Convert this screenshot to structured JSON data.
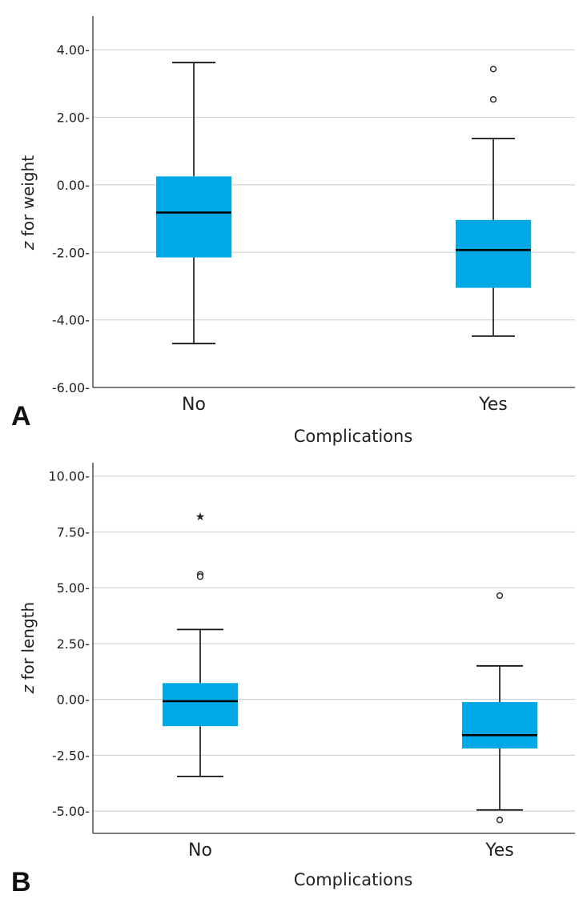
{
  "colors": {
    "box_fill": "#00a8e6",
    "grid": "#d4d4d4",
    "axis": "#333333",
    "median": "#000000"
  },
  "chart_data": [
    {
      "panel_label": "A",
      "type": "boxplot",
      "xlabel": "Complications",
      "ylabel_italic": "z",
      "ylabel_rest": " for weight",
      "ylim": [
        -6.0,
        5.0
      ],
      "yticks": [
        4.0,
        2.0,
        0.0,
        -2.0,
        -4.0,
        -6.0
      ],
      "ytick_labels": [
        "4.00-",
        "2.00-",
        "0.00-",
        "-2.00-",
        "-4.00-",
        "-6.00-"
      ],
      "categories": [
        "No",
        "Yes"
      ],
      "boxes": [
        {
          "category": "No",
          "whisker_low": -4.7,
          "q1": -2.15,
          "median": -0.82,
          "q3": 0.25,
          "whisker_high": 3.62,
          "outliers": [],
          "extremes": []
        },
        {
          "category": "Yes",
          "whisker_low": -4.48,
          "q1": -3.05,
          "median": -1.93,
          "q3": -1.04,
          "whisker_high": 1.37,
          "outliers": [
            3.43,
            2.53
          ],
          "extremes": []
        }
      ]
    },
    {
      "panel_label": "B",
      "type": "boxplot",
      "xlabel": "Complications",
      "ylabel_italic": "z",
      "ylabel_rest": " for length",
      "ylim": [
        -6.0,
        10.6
      ],
      "yticks": [
        10.0,
        7.5,
        5.0,
        2.5,
        0.0,
        -2.5,
        -5.0
      ],
      "ytick_labels": [
        "10.00-",
        "7.50-",
        "5.00-",
        "2.50-",
        "0.00-",
        "-2.50-",
        "-5.00-"
      ],
      "categories": [
        "No",
        "Yes"
      ],
      "boxes": [
        {
          "category": "No",
          "whisker_low": -3.45,
          "q1": -1.2,
          "median": -0.08,
          "q3": 0.73,
          "whisker_high": 3.13,
          "outliers": [
            5.6,
            5.5
          ],
          "extremes": [
            8.2
          ]
        },
        {
          "category": "Yes",
          "whisker_low": -4.95,
          "q1": -2.2,
          "median": -1.6,
          "q3": -0.12,
          "whisker_high": 1.5,
          "outliers": [
            4.65,
            -5.4
          ],
          "extremes": []
        }
      ]
    }
  ]
}
